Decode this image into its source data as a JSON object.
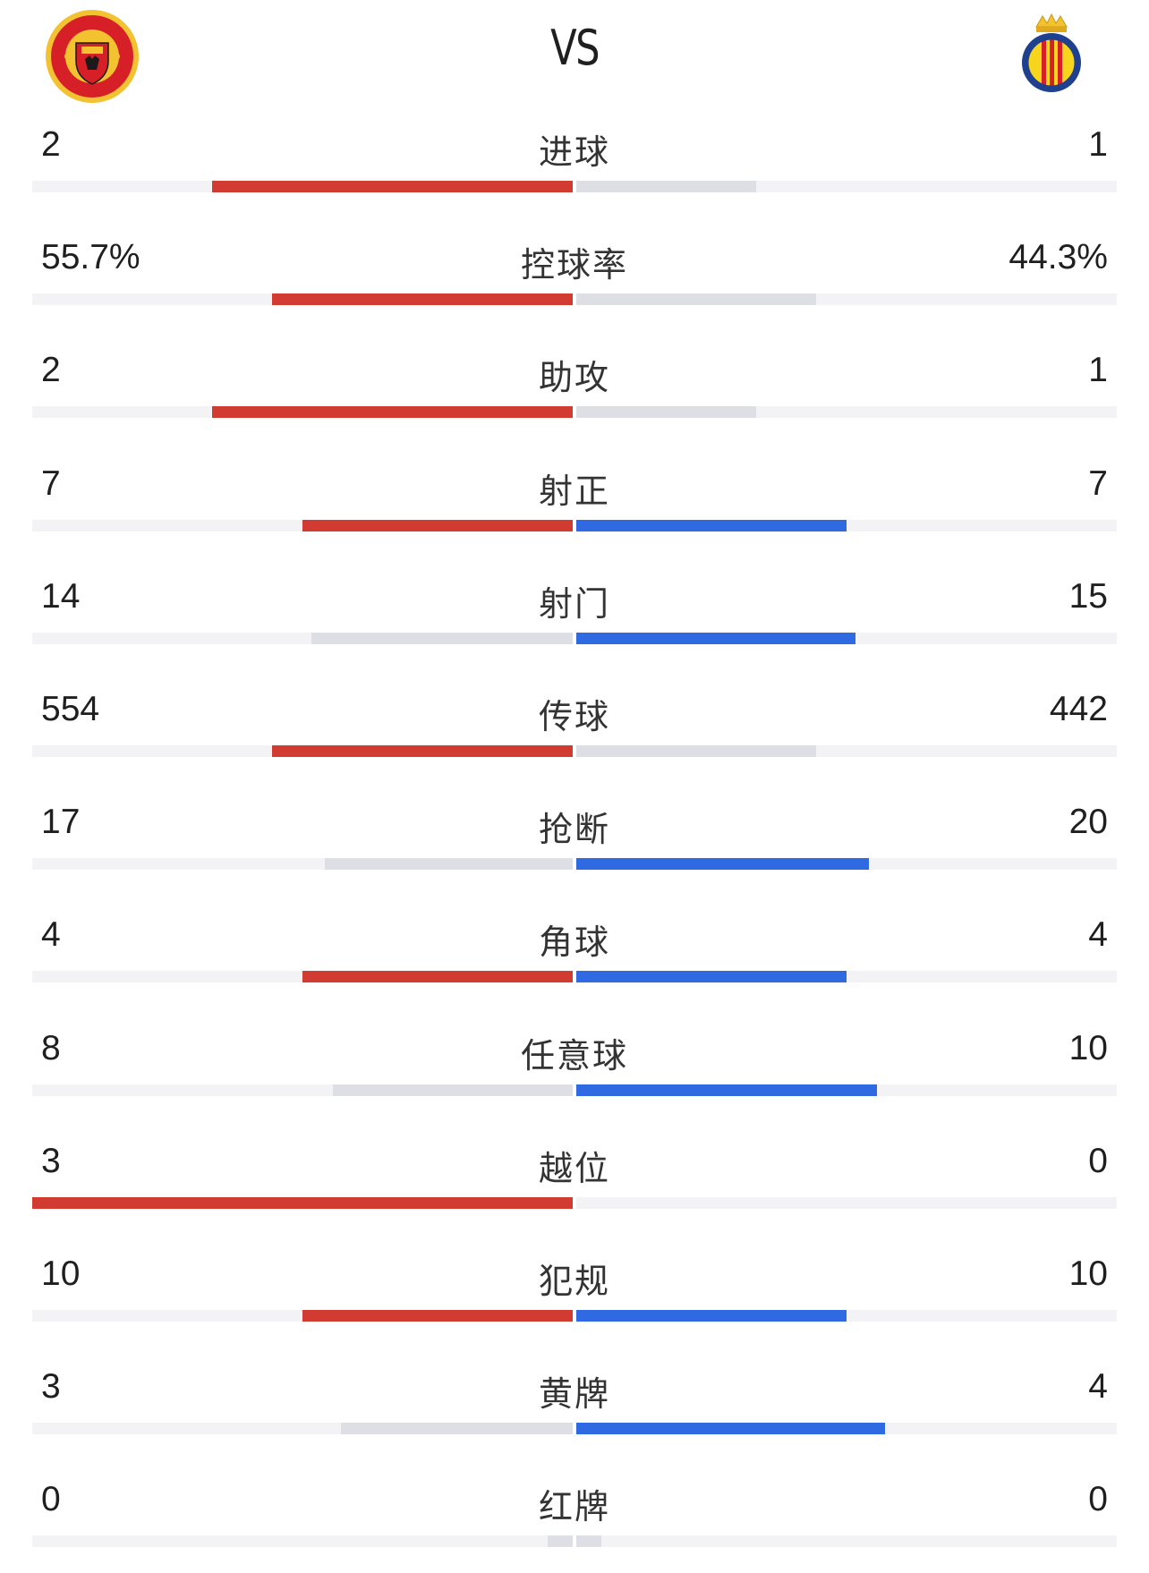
{
  "header": {
    "vs": "VS",
    "home_badge": "manchester-united-crest",
    "away_badge": "villarreal-crest"
  },
  "colors": {
    "home": "#d13b31",
    "away": "#2f6ae3",
    "muted": "#dddfe5",
    "track": "#f3f3f6"
  },
  "stats": [
    {
      "label": "进球",
      "home": "2",
      "away": "1",
      "home_ratio": 0.667,
      "away_ratio": 0.333
    },
    {
      "label": "控球率",
      "home": "55.7%",
      "away": "44.3%",
      "home_ratio": 0.557,
      "away_ratio": 0.443
    },
    {
      "label": "助攻",
      "home": "2",
      "away": "1",
      "home_ratio": 0.667,
      "away_ratio": 0.333
    },
    {
      "label": "射正",
      "home": "7",
      "away": "7",
      "home_ratio": 0.5,
      "away_ratio": 0.5
    },
    {
      "label": "射门",
      "home": "14",
      "away": "15",
      "home_ratio": 0.483,
      "away_ratio": 0.517
    },
    {
      "label": "传球",
      "home": "554",
      "away": "442",
      "home_ratio": 0.556,
      "away_ratio": 0.444
    },
    {
      "label": "抢断",
      "home": "17",
      "away": "20",
      "home_ratio": 0.459,
      "away_ratio": 0.541
    },
    {
      "label": "角球",
      "home": "4",
      "away": "4",
      "home_ratio": 0.5,
      "away_ratio": 0.5
    },
    {
      "label": "任意球",
      "home": "8",
      "away": "10",
      "home_ratio": 0.444,
      "away_ratio": 0.556
    },
    {
      "label": "越位",
      "home": "3",
      "away": "0",
      "home_ratio": 1.0,
      "away_ratio": 0.0
    },
    {
      "label": "犯规",
      "home": "10",
      "away": "10",
      "home_ratio": 0.5,
      "away_ratio": 0.5
    },
    {
      "label": "黄牌",
      "home": "3",
      "away": "4",
      "home_ratio": 0.429,
      "away_ratio": 0.571
    },
    {
      "label": "红牌",
      "home": "0",
      "away": "0",
      "home_ratio": 0.0,
      "away_ratio": 0.0
    }
  ]
}
